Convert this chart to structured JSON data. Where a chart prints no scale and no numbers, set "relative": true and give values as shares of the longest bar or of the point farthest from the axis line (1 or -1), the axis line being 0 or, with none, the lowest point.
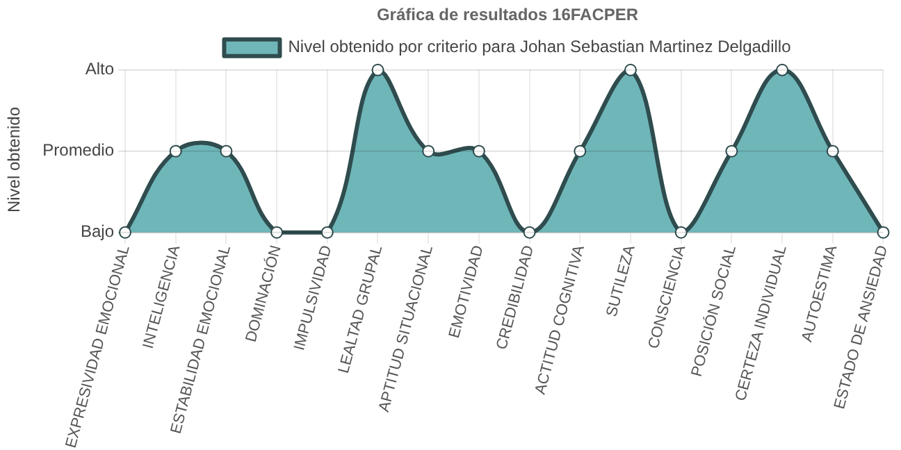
{
  "chart_data": {
    "type": "area",
    "title": "Gráfica de resultados 16FACPER",
    "ylabel": "Nivel obtenido",
    "relative": true,
    "categories": [
      "EXPRESIVIDAD EMOCIONAL",
      "INTELIGENCIA",
      "ESTABILIDAD EMOCIONAL",
      "DOMINACIÓN",
      "IMPULSIVIDAD",
      "LEALTAD GRUPAL",
      "APTITUD SITUACIONAL",
      "EMOTIVIDAD",
      "CREDIBILIDAD",
      "ACTITUD COGNITIVA",
      "SUTILEZA",
      "CONSCIENCIA",
      "POSICIÓN SOCIAL",
      "CERTEZA INDIVIDUAL",
      "AUTOESTIMA",
      "ESTADO DE ANSIEDAD"
    ],
    "series": [
      {
        "name": "Nivel obtenido por criterio para Johan Sebastian Martinez Delgadillo",
        "color": "#6fb6b9",
        "values": [
          0,
          0.5,
          0.5,
          0,
          0,
          1,
          0.5,
          0.5,
          0,
          0.5,
          1,
          0,
          0.5,
          1,
          0.5,
          0
        ]
      }
    ],
    "annotations": [
      "Bajo",
      "Promedio",
      "Alto"
    ],
    "grid": true,
    "legend": "top",
    "marker": "circle",
    "line_style": "solid"
  }
}
